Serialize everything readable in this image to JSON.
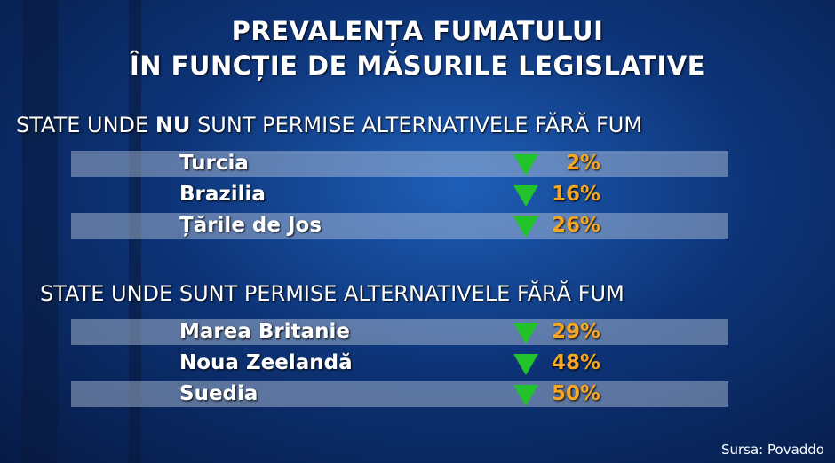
{
  "title": [
    "PREVALENȚA FUMATULUI",
    "ÎN FUNCȚIE DE MĂSURILE LEGISLATIVE"
  ],
  "sections": [
    {
      "heading": [
        "STATE UNDE",
        "NU",
        "SUNT PERMISE ALTERNATIVELE FĂRĂ FUM"
      ],
      "rows": [
        [
          "Turcia",
          "2%"
        ],
        [
          "Brazilia",
          "16%"
        ],
        [
          "Țările de Jos",
          "26%"
        ]
      ]
    },
    {
      "heading": [
        "STATE UNDE SUNT PERMISE ALTERNATIVELE FĂRĂ FUM"
      ],
      "rows": [
        [
          "Marea Britanie",
          "29%"
        ],
        [
          "Noua Zeelandă",
          "48%"
        ],
        [
          "Suedia",
          "50%"
        ]
      ]
    }
  ],
  "source": "Sursa: Povaddo"
}
